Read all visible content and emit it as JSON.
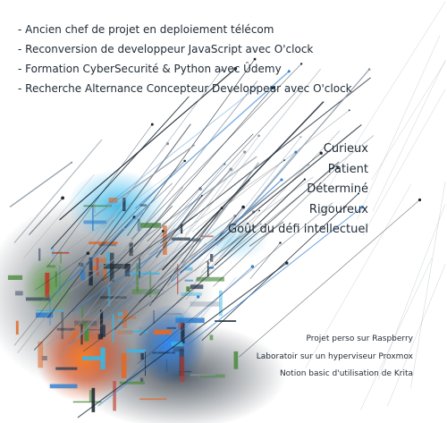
{
  "experience": [
    "- Ancien chef de projet en deploiement télécom",
    "- Reconversion de developpeur JavaScript avec O'clock",
    "- Formation CyberSecurité & Python avec Ûdemy",
    "- Recherche Alternance Concepteur Developpeur avec O'clock"
  ],
  "traits": [
    "Curieux",
    "Patient",
    "Déterminé",
    "Rigoureux",
    "Goût du défi intellectuel"
  ],
  "projects": [
    "Projet perso sur Raspberry",
    "Laboratoir sur un hyperviseur Proxmox",
    "Notion basic d'utilisation de Krita"
  ],
  "palette": {
    "dark": "#1c2833",
    "navy": "#2c3e55",
    "blue": "#2f7fd0",
    "cyan": "#39b6e6",
    "green": "#4a8a3c",
    "orange": "#e06a2a",
    "red": "#c0392b",
    "grey": "#8a96a3"
  }
}
